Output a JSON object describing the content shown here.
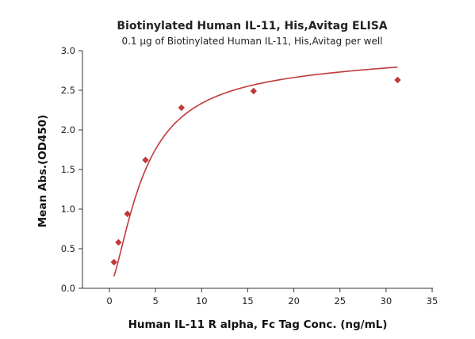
{
  "chart_data": {
    "type": "scatter",
    "title": "Biotinylated Human IL-11, His,Avitag ELISA",
    "subtitle": "0.1 μg of Biotinylated Human IL-11, His,Avitag per well",
    "xlabel": "Human IL-11 R alpha, Fc Tag Conc. (ng/mL)",
    "ylabel": "Mean Abs.(OD450)",
    "xlim": [
      0,
      35
    ],
    "ylim": [
      0.0,
      3.0
    ],
    "xticks": [
      0,
      5,
      10,
      15,
      20,
      25,
      30,
      35
    ],
    "yticks": [
      "0.0",
      "0.5",
      "1.0",
      "1.5",
      "2.0",
      "2.5",
      "3.0"
    ],
    "grid": false,
    "color": "#c0393b",
    "series": [
      {
        "x": [
          0.49,
          0.98,
          1.95,
          3.91,
          7.81,
          15.63,
          31.25
        ],
        "y": [
          0.33,
          0.58,
          0.94,
          1.62,
          2.28,
          2.49,
          2.63
        ],
        "marker": "diamond",
        "fit_curve": true
      }
    ]
  }
}
